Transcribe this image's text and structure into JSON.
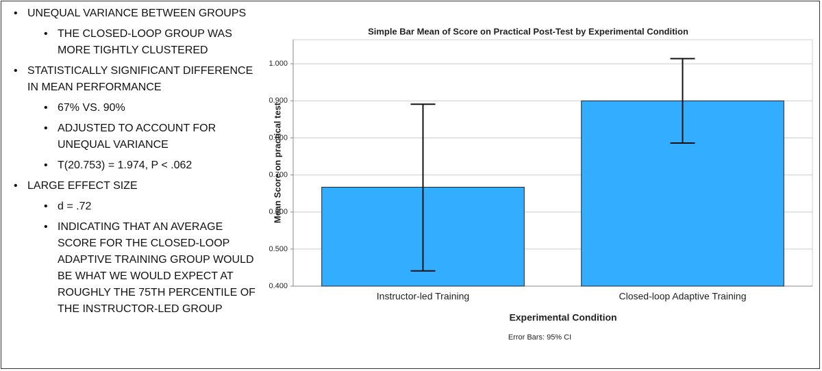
{
  "bullets": [
    {
      "text": "UNEQUAL VARIANCE BETWEEN GROUPS",
      "sub": [
        "THE CLOSED-LOOP GROUP WAS MORE TIGHTLY CLUSTERED"
      ]
    },
    {
      "text": "STATISTICALLY SIGNIFICANT DIFFERENCE IN MEAN PERFORMANCE",
      "sub": [
        "67% VS. 90%",
        "ADJUSTED TO ACCOUNT FOR UNEQUAL VARIANCE",
        "T(20.753) = 1.974, P < .062"
      ]
    },
    {
      "text": "LARGE EFFECT SIZE",
      "sub": [
        "d = .72",
        "INDICATING THAT  AN AVERAGE SCORE FOR THE CLOSED-LOOP ADAPTIVE TRAINING GROUP WOULD BE WHAT WE WOULD EXPECT AT ROUGHLY THE 75TH PERCENTILE OF THE INSTRUCTOR-LED GROUP"
      ]
    }
  ],
  "chart_data": {
    "type": "bar",
    "title": "Simple Bar Mean of Score on Practical Post-Test by Experimental Condition",
    "x_label": "Experimental Condition",
    "y_label": "Mean Score on practical test",
    "note": "Error Bars: 95% CI",
    "categories": [
      "Instructor-led Training",
      "Closed-loop Adaptive Training"
    ],
    "values": [
      0.667,
      0.9
    ],
    "error_low": [
      0.441,
      0.786
    ],
    "error_high": [
      0.891,
      1.014
    ],
    "color": "#33adff",
    "ylim": [
      0.4,
      1.065
    ],
    "yticks": [
      {
        "value": 0.4,
        "label": "0.400"
      },
      {
        "value": 0.5,
        "label": "0.500"
      },
      {
        "value": 0.6,
        "label": "0.600"
      },
      {
        "value": 0.7,
        "label": "0.700"
      },
      {
        "value": 0.8,
        "label": "0.800"
      },
      {
        "value": 0.9,
        "label": "0.900"
      },
      {
        "value": 1.0,
        "label": "1.000"
      }
    ],
    "grid": true
  }
}
